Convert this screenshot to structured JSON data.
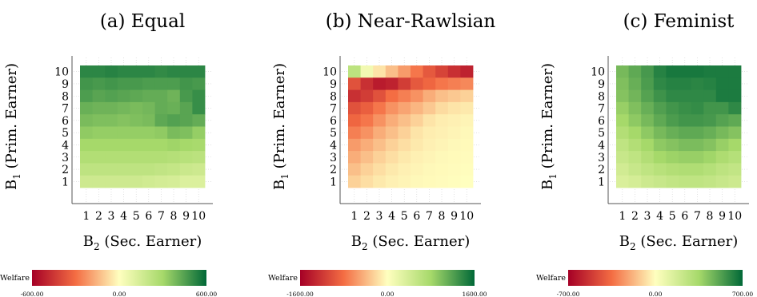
{
  "colors": {
    "low": "#a50026",
    "low_mid": "#f46d43",
    "mid": "#ffffbf",
    "high_mid": "#a6d96a",
    "high": "#006837"
  },
  "chart_data": [
    {
      "type": "heatmap",
      "title": "(a) Equal",
      "xlabel_main": "B",
      "xlabel_sub": "2",
      "xlabel_rest": " (Sec. Earner)",
      "ylabel_main": "B",
      "ylabel_sub": "1",
      "ylabel_rest": " (Prim. Earner)",
      "x_ticks": [
        "1",
        "2",
        "3",
        "4",
        "5",
        "6",
        "7",
        "8",
        "9",
        "10"
      ],
      "y_ticks": [
        "1",
        "2",
        "3",
        "4",
        "5",
        "6",
        "7",
        "8",
        "9",
        "10"
      ],
      "colorbar": {
        "label": "Welfare",
        "min": -600,
        "max": 600,
        "tick_labels": [
          "-600.00",
          "0.00",
          "600.00"
        ]
      },
      "values": [
        [
          520,
          520,
          530,
          520,
          520,
          520,
          510,
          520,
          520,
          520
        ],
        [
          480,
          470,
          480,
          470,
          470,
          460,
          460,
          460,
          480,
          470
        ],
        [
          460,
          440,
          450,
          440,
          430,
          420,
          420,
          400,
          470,
          500
        ],
        [
          410,
          400,
          400,
          390,
          380,
          390,
          420,
          410,
          440,
          500
        ],
        [
          380,
          370,
          370,
          360,
          370,
          380,
          430,
          450,
          440,
          420
        ],
        [
          340,
          330,
          330,
          330,
          330,
          330,
          340,
          380,
          370,
          330
        ],
        [
          300,
          300,
          300,
          300,
          300,
          300,
          300,
          310,
          300,
          290
        ],
        [
          260,
          260,
          260,
          260,
          260,
          260,
          260,
          250,
          240,
          230
        ],
        [
          220,
          220,
          220,
          220,
          220,
          220,
          210,
          200,
          180,
          170
        ],
        [
          170,
          170,
          170,
          170,
          170,
          160,
          150,
          140,
          120,
          120
        ]
      ]
    },
    {
      "type": "heatmap",
      "title": "(b) Near-Rawlsian",
      "xlabel_main": "B",
      "xlabel_sub": "2",
      "xlabel_rest": " (Sec. Earner)",
      "ylabel_main": "B",
      "ylabel_sub": "1",
      "ylabel_rest": " (Prim. Earner)",
      "x_ticks": [
        "1",
        "2",
        "3",
        "4",
        "5",
        "6",
        "7",
        "8",
        "9",
        "10"
      ],
      "y_ticks": [
        "1",
        "2",
        "3",
        "4",
        "5",
        "6",
        "7",
        "8",
        "9",
        "10"
      ],
      "colorbar": {
        "label": "Welfare",
        "min": -1600,
        "max": 1600,
        "tick_labels": [
          "-1600.00",
          "0.00",
          "1600.00"
        ]
      },
      "values": [
        [
          600,
          120,
          -150,
          -350,
          -550,
          -750,
          -950,
          -1100,
          -1250,
          -1350
        ],
        [
          -1000,
          -1250,
          -1400,
          -1350,
          -1150,
          -950,
          -850,
          -750,
          -700,
          -650
        ],
        [
          -1250,
          -1150,
          -1000,
          -800,
          -700,
          -600,
          -450,
          -350,
          -300,
          -250
        ],
        [
          -1000,
          -900,
          -750,
          -600,
          -500,
          -400,
          -300,
          -200,
          -150,
          -120
        ],
        [
          -850,
          -750,
          -600,
          -450,
          -350,
          -250,
          -150,
          -100,
          -80,
          -60
        ],
        [
          -700,
          -600,
          -450,
          -350,
          -250,
          -150,
          -100,
          -80,
          -60,
          -40
        ],
        [
          -550,
          -450,
          -350,
          -250,
          -180,
          -120,
          -80,
          -60,
          -40,
          -30
        ],
        [
          -450,
          -350,
          -250,
          -180,
          -120,
          -80,
          -60,
          -40,
          -30,
          -20
        ],
        [
          -350,
          -250,
          -180,
          -120,
          -80,
          -60,
          -40,
          -30,
          -20,
          -10
        ],
        [
          -250,
          -180,
          -120,
          -80,
          -60,
          -40,
          -30,
          -20,
          -10,
          0
        ]
      ]
    },
    {
      "type": "heatmap",
      "title": "(c) Feminist",
      "xlabel_main": "B",
      "xlabel_sub": "2",
      "xlabel_rest": " (Sec. Earner)",
      "ylabel_main": "B",
      "ylabel_sub": "1",
      "ylabel_rest": " (Prim. Earner)",
      "x_ticks": [
        "1",
        "2",
        "3",
        "4",
        "5",
        "6",
        "7",
        "8",
        "9",
        "10"
      ],
      "y_ticks": [
        "1",
        "2",
        "3",
        "4",
        "5",
        "6",
        "7",
        "8",
        "9",
        "10"
      ],
      "colorbar": {
        "label": "Welfare",
        "min": -700,
        "max": 700,
        "tick_labels": [
          "-700.00",
          "0.00",
          "700.00"
        ]
      },
      "values": [
        [
          450,
          500,
          550,
          620,
          650,
          650,
          650,
          640,
          640,
          640
        ],
        [
          430,
          480,
          540,
          600,
          620,
          620,
          610,
          620,
          640,
          640
        ],
        [
          420,
          460,
          520,
          570,
          600,
          600,
          600,
          600,
          640,
          640
        ],
        [
          380,
          430,
          480,
          530,
          560,
          580,
          590,
          560,
          560,
          600
        ],
        [
          350,
          400,
          450,
          500,
          540,
          560,
          560,
          550,
          520,
          500
        ],
        [
          300,
          350,
          400,
          450,
          480,
          500,
          500,
          480,
          450,
          420
        ],
        [
          250,
          300,
          350,
          400,
          420,
          440,
          440,
          420,
          380,
          350
        ],
        [
          220,
          250,
          300,
          350,
          370,
          380,
          380,
          360,
          320,
          290
        ],
        [
          180,
          220,
          250,
          280,
          300,
          310,
          310,
          290,
          260,
          240
        ],
        [
          150,
          170,
          200,
          220,
          240,
          250,
          250,
          240,
          220,
          200
        ]
      ]
    }
  ]
}
